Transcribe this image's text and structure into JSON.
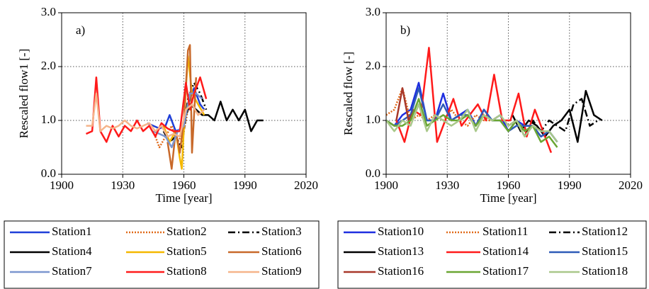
{
  "chart_data": [
    {
      "type": "line",
      "annotation": "a)",
      "x_label": "Time [year]",
      "y_label": "Rescaled flow1 [-]",
      "xlim": [
        1900,
        2020
      ],
      "xticks": [
        1900,
        1930,
        1960,
        1990,
        2020
      ],
      "ylim": [
        0,
        3
      ],
      "yticks": [
        {
          "value": 0,
          "label": "0.0"
        },
        {
          "value": 1,
          "label": "1.0"
        },
        {
          "value": 2,
          "label": "2.0"
        },
        {
          "value": 3,
          "label": "3.0"
        }
      ],
      "grid": true,
      "series": [
        {
          "name": "Station1",
          "color": "#1f3fd8",
          "dash": "solid",
          "x": [
            1942,
            1945,
            1948,
            1951,
            1953,
            1956,
            1959,
            1962,
            1965,
            1968,
            1970
          ],
          "values": [
            0.95,
            0.9,
            0.85,
            0.9,
            1.1,
            0.8,
            0.85,
            1.3,
            1.6,
            1.3,
            1.2
          ]
        },
        {
          "name": "Station2",
          "color": "#e06a1a",
          "dash": "dotted",
          "x": [
            1945,
            1948,
            1951,
            1954,
            1957,
            1960,
            1962
          ],
          "values": [
            0.8,
            0.5,
            0.7,
            0.9,
            0.6,
            0.8,
            1.2
          ]
        },
        {
          "name": "Station3",
          "color": "#000000",
          "dash": "dashdot",
          "x": [
            1950,
            1953,
            1956,
            1959,
            1962,
            1965,
            1968,
            1971
          ],
          "values": [
            0.8,
            0.6,
            0.7,
            0.5,
            1.4,
            1.7,
            1.5,
            1.2
          ]
        },
        {
          "name": "Station4",
          "color": "#000000",
          "dash": "solid",
          "x": [
            1960,
            1963,
            1966,
            1969,
            1972,
            1975,
            1978,
            1981,
            1984,
            1987,
            1990,
            1993,
            1996,
            1999
          ],
          "values": [
            1.0,
            1.3,
            1.2,
            1.1,
            1.1,
            1.0,
            1.35,
            1.0,
            1.2,
            1.0,
            1.2,
            0.8,
            1.0,
            1.0
          ]
        },
        {
          "name": "Station5",
          "color": "#f5b800",
          "dash": "solid",
          "x": [
            1950,
            1953,
            1956,
            1958,
            1959,
            1961,
            1962,
            1964,
            1967,
            1970
          ],
          "values": [
            0.9,
            0.6,
            0.8,
            0.3,
            0.1,
            1.6,
            2.2,
            1.5,
            1.3,
            1.1
          ]
        },
        {
          "name": "Station6",
          "color": "#c8692a",
          "dash": "solid",
          "x": [
            1952,
            1954,
            1956,
            1958,
            1960,
            1962,
            1963,
            1964,
            1966
          ],
          "values": [
            0.6,
            0.1,
            0.8,
            0.4,
            1.0,
            2.3,
            2.4,
            0.4,
            1.8
          ]
        },
        {
          "name": "Station7",
          "color": "#7b96cf",
          "dash": "solid",
          "x": [
            1945,
            1948,
            1951,
            1954,
            1957,
            1960,
            1963,
            1966,
            1969
          ],
          "values": [
            0.8,
            0.75,
            0.7,
            0.5,
            0.8,
            0.9,
            1.5,
            1.5,
            1.4
          ]
        },
        {
          "name": "Station8",
          "color": "#ff1a1a",
          "dash": "solid",
          "x": [
            1912,
            1915,
            1917,
            1919,
            1922,
            1925,
            1928,
            1931,
            1934,
            1937,
            1940,
            1943,
            1946,
            1949,
            1952,
            1955,
            1958,
            1961,
            1963,
            1965,
            1968,
            1971
          ],
          "values": [
            0.75,
            0.8,
            1.8,
            0.8,
            0.6,
            0.9,
            0.7,
            0.9,
            0.8,
            1.0,
            0.8,
            0.9,
            0.7,
            0.95,
            0.85,
            0.8,
            0.8,
            1.7,
            1.2,
            1.5,
            1.8,
            1.4
          ]
        },
        {
          "name": "Station9",
          "color": "#f5b48a",
          "dash": "solid",
          "x": [
            1912,
            1915,
            1917,
            1919,
            1922,
            1925,
            1928,
            1931,
            1934,
            1937,
            1940,
            1943,
            1946,
            1949,
            1952,
            1955,
            1958,
            1961,
            1964,
            1967,
            1970
          ],
          "values": [
            0.9,
            0.9,
            1.5,
            0.8,
            0.9,
            0.85,
            0.9,
            1.0,
            0.9,
            0.85,
            0.9,
            0.95,
            0.8,
            0.9,
            0.7,
            0.75,
            0.7,
            1.2,
            1.3,
            1.1,
            1.2
          ]
        }
      ]
    },
    {
      "type": "line",
      "annotation": "b)",
      "x_label": "Time [year]",
      "y_label": "Rescaled flow [-]",
      "xlim": [
        1900,
        2020
      ],
      "xticks": [
        1900,
        1930,
        1960,
        1990,
        2020
      ],
      "ylim": [
        0,
        3
      ],
      "yticks": [
        {
          "value": 0,
          "label": "0.0"
        },
        {
          "value": 1,
          "label": "1.0"
        },
        {
          "value": 2,
          "label": "2.0"
        },
        {
          "value": 3,
          "label": "3.0"
        }
      ],
      "grid": true,
      "series": [
        {
          "name": "Station10",
          "color": "#1f2fe0",
          "dash": "solid",
          "x": [
            1900,
            1904,
            1908,
            1912,
            1916,
            1920,
            1924,
            1928,
            1932,
            1936,
            1940,
            1944,
            1948,
            1952,
            1956,
            1960,
            1964,
            1968,
            1972,
            1976,
            1980,
            1984
          ],
          "values": [
            1.0,
            0.9,
            1.1,
            1.2,
            1.7,
            1.0,
            1.0,
            1.5,
            1.0,
            1.1,
            1.2,
            0.9,
            1.2,
            1.0,
            1.1,
            0.8,
            1.0,
            0.9,
            0.9,
            0.7,
            0.8,
            0.6
          ]
        },
        {
          "name": "Station11",
          "color": "#e06a1a",
          "dash": "dotted",
          "x": [
            1900,
            1904,
            1908,
            1912,
            1916,
            1920,
            1924,
            1928,
            1932,
            1936,
            1940,
            1944,
            1948,
            1952,
            1956,
            1960
          ],
          "values": [
            1.1,
            1.2,
            1.6,
            1.0,
            1.1,
            1.0,
            1.1,
            1.0,
            1.2,
            1.0,
            0.9,
            1.1,
            1.0,
            1.0,
            1.1,
            0.9
          ]
        },
        {
          "name": "Station12",
          "color": "#000000",
          "dash": "dashdot",
          "x": [
            1960,
            1964,
            1968,
            1972,
            1976,
            1980,
            1984,
            1988,
            1992,
            1996,
            2000,
            2004
          ],
          "values": [
            0.9,
            1.0,
            0.7,
            1.0,
            0.8,
            1.0,
            0.9,
            0.8,
            1.3,
            1.4,
            0.9,
            1.0
          ]
        },
        {
          "name": "Station13",
          "color": "#000000",
          "dash": "solid",
          "x": [
            1962,
            1966,
            1970,
            1974,
            1978,
            1982,
            1986,
            1990,
            1994,
            1998,
            2002,
            2006
          ],
          "values": [
            1.1,
            0.8,
            1.0,
            0.9,
            0.7,
            0.9,
            1.0,
            1.2,
            0.6,
            1.55,
            1.1,
            1.0
          ]
        },
        {
          "name": "Station14",
          "color": "#ff1a1a",
          "dash": "solid",
          "x": [
            1905,
            1909,
            1913,
            1917,
            1921,
            1925,
            1929,
            1933,
            1937,
            1941,
            1945,
            1949,
            1953,
            1957,
            1961,
            1965,
            1969,
            1973,
            1977,
            1981
          ],
          "values": [
            1.0,
            0.6,
            1.2,
            1.1,
            2.35,
            0.6,
            1.0,
            1.4,
            0.9,
            1.1,
            1.3,
            1.0,
            1.85,
            1.0,
            1.0,
            1.5,
            0.7,
            1.2,
            0.8,
            0.4
          ]
        },
        {
          "name": "Station15",
          "color": "#2e5bb8",
          "dash": "solid",
          "x": [
            1900,
            1904,
            1908,
            1912,
            1916,
            1920,
            1924,
            1928,
            1932,
            1936,
            1940,
            1944,
            1948,
            1952,
            1956,
            1960,
            1964,
            1968,
            1972,
            1976,
            1980,
            1984
          ],
          "values": [
            1.0,
            0.9,
            1.0,
            1.1,
            1.6,
            1.0,
            1.0,
            1.3,
            1.0,
            1.1,
            1.1,
            0.9,
            1.2,
            1.0,
            1.0,
            0.8,
            0.9,
            0.9,
            0.9,
            0.7,
            0.8,
            0.6
          ]
        },
        {
          "name": "Station16",
          "color": "#a8382a",
          "dash": "solid",
          "x": [
            1905,
            1908,
            1911,
            1914
          ],
          "values": [
            1.0,
            1.6,
            1.0,
            1.2
          ]
        },
        {
          "name": "Station17",
          "color": "#6aa632",
          "dash": "solid",
          "x": [
            1900,
            1904,
            1908,
            1912,
            1916,
            1920,
            1924,
            1928,
            1932,
            1936,
            1940,
            1944,
            1948,
            1952,
            1956,
            1960,
            1964,
            1968,
            1972,
            1976,
            1980,
            1984
          ],
          "values": [
            1.0,
            0.9,
            0.9,
            1.0,
            1.4,
            0.9,
            1.0,
            1.1,
            1.0,
            1.0,
            1.1,
            0.9,
            1.1,
            1.0,
            1.0,
            0.8,
            1.0,
            0.8,
            0.9,
            0.6,
            0.7,
            0.5
          ]
        },
        {
          "name": "Station18",
          "color": "#a9c88a",
          "dash": "solid",
          "x": [
            1900,
            1904,
            1908,
            1912,
            1916,
            1920,
            1924,
            1928,
            1932,
            1936,
            1940,
            1944,
            1948,
            1952,
            1956,
            1960,
            1964,
            1968,
            1972,
            1976,
            1980,
            1984
          ],
          "values": [
            1.0,
            0.8,
            1.0,
            0.9,
            1.3,
            0.8,
            1.1,
            1.0,
            0.9,
            1.0,
            1.2,
            0.8,
            1.1,
            1.0,
            1.1,
            0.9,
            1.0,
            0.7,
            0.9,
            0.8,
            0.8,
            0.6
          ]
        }
      ]
    }
  ]
}
